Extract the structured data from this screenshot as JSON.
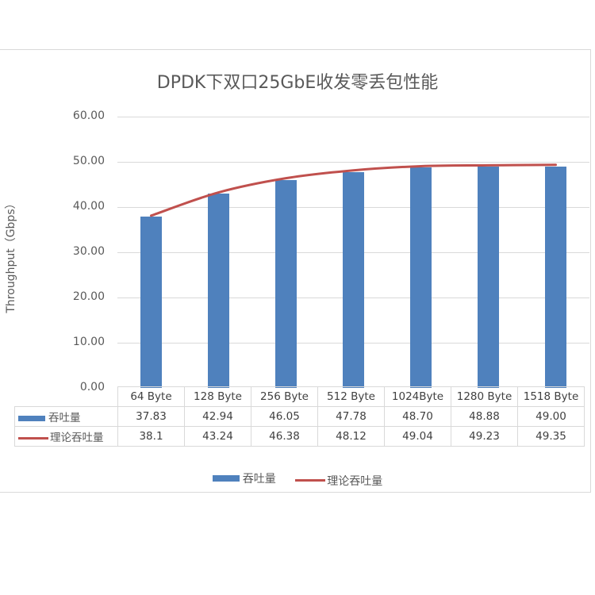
{
  "chart_data": {
    "type": "bar",
    "title": "DPDK下双口25GbE收发零丢包性能",
    "xlabel": "",
    "ylabel": "Throughput（Gbps）",
    "ylim": [
      0,
      60
    ],
    "yticks": [
      "0.00",
      "10.00",
      "20.00",
      "30.00",
      "40.00",
      "50.00",
      "60.00"
    ],
    "grid": true,
    "legend_position": "bottom",
    "data_table": true,
    "categories": [
      "64 Byte",
      "128 Byte",
      "256 Byte",
      "512 Byte",
      "1024Byte",
      "1280 Byte",
      "1518 Byte"
    ],
    "series": [
      {
        "name": "吞吐量",
        "type": "bar",
        "color": "#4F81BD",
        "values": [
          37.83,
          42.94,
          46.05,
          47.78,
          48.7,
          48.88,
          49.0
        ],
        "labels": [
          "37.83",
          "42.94",
          "46.05",
          "47.78",
          "48.70",
          "48.88",
          "49.00"
        ]
      },
      {
        "name": "理论吞吐量",
        "type": "line",
        "color": "#C0504D",
        "values": [
          38.1,
          43.24,
          46.38,
          48.12,
          49.04,
          49.23,
          49.35
        ],
        "labels": [
          "38.1",
          "43.24",
          "46.38",
          "48.12",
          "49.04",
          "49.23",
          "49.35"
        ]
      }
    ]
  }
}
